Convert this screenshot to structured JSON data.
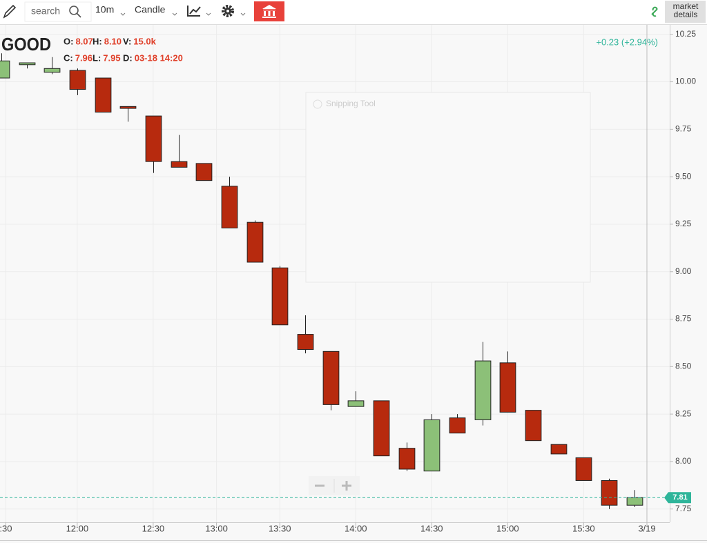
{
  "toolbar": {
    "search": "search",
    "interval": "10m",
    "style": "Candle",
    "market_details": "market details"
  },
  "chart_data": {
    "type": "candlestick",
    "title": "GOOD",
    "info": [
      {
        "label": "O:",
        "value": "8.07"
      },
      {
        "label": "H:",
        "value": "8.10"
      },
      {
        "label": "V:",
        "value": "15.0k"
      },
      {
        "label": "C:",
        "value": "7.96"
      },
      {
        "label": "L:",
        "value": "7.95"
      },
      {
        "label": "D:",
        "value": "03-18 14:20"
      }
    ],
    "change": "+0.23 (+2.94%)",
    "open": [
      10.02,
      10.09,
      10.05,
      10.06,
      10.02,
      9.87,
      9.82,
      9.58,
      9.57,
      9.45,
      9.26,
      9.02,
      8.67,
      8.58,
      8.29,
      8.32,
      8.07,
      7.95,
      8.23,
      8.22,
      8.52,
      8.27,
      8.09,
      8.02,
      7.9,
      7.77
    ],
    "high": [
      10.15,
      10.1,
      10.13,
      10.07,
      10.02,
      9.87,
      9.82,
      9.72,
      9.57,
      9.5,
      9.27,
      9.03,
      8.77,
      8.58,
      8.37,
      8.32,
      8.1,
      8.25,
      8.25,
      8.63,
      8.58,
      8.27,
      8.09,
      8.02,
      7.91,
      7.85
    ],
    "low": [
      10.02,
      10.07,
      10.04,
      9.93,
      9.84,
      9.79,
      9.52,
      9.55,
      9.48,
      9.23,
      9.05,
      8.72,
      8.57,
      8.27,
      8.29,
      8.03,
      7.95,
      7.95,
      8.15,
      8.19,
      8.26,
      8.11,
      8.04,
      7.9,
      7.75,
      7.76
    ],
    "close": [
      10.11,
      10.1,
      10.07,
      9.96,
      9.84,
      9.86,
      9.58,
      9.55,
      9.48,
      9.23,
      9.05,
      8.72,
      8.59,
      8.3,
      8.32,
      8.03,
      7.96,
      8.22,
      8.15,
      8.53,
      8.26,
      8.11,
      8.04,
      7.9,
      7.77,
      7.81
    ],
    "up_color": "#8cc078",
    "down_color": "#b72a0e",
    "xlim": [
      -0.05,
      26.4
    ],
    "xticks": [
      {
        "value": 0.18,
        "label": ":30"
      },
      {
        "value": 3,
        "label": "12:00"
      },
      {
        "value": 6,
        "label": "12:30"
      },
      {
        "value": 8.5,
        "label": "13:00"
      },
      {
        "value": 11,
        "label": "13:30"
      },
      {
        "value": 14,
        "label": "14:00"
      },
      {
        "value": 17,
        "label": "14:30"
      },
      {
        "value": 20,
        "label": "15:00"
      },
      {
        "value": 23,
        "label": "15:30"
      },
      {
        "value": 25.5,
        "label": "3/19"
      }
    ],
    "ylim": [
      7.68,
      10.3
    ],
    "yticks": [
      7.75,
      {
        "value": 8,
        "label": "8.00"
      },
      8.25,
      {
        "value": 8.5,
        "label": "8.50"
      },
      8.75,
      {
        "value": 9,
        "label": "9.00"
      },
      9.25,
      {
        "value": 9.5,
        "label": "9.50"
      },
      9.75,
      {
        "value": 10,
        "label": "10.00"
      },
      10.25
    ],
    "last_price": 7.81,
    "grid": true,
    "overlay": "Snipping Tool"
  }
}
